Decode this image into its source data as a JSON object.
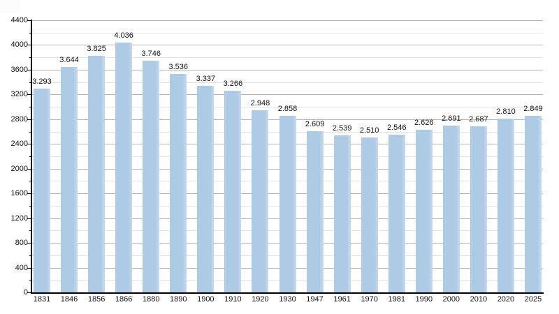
{
  "chart_data": {
    "type": "bar",
    "title": "",
    "xlabel": "",
    "ylabel": "",
    "categories": [
      "1831",
      "1846",
      "1856",
      "1866",
      "1880",
      "1890",
      "1900",
      "1910",
      "1920",
      "1930",
      "1947",
      "1961",
      "1970",
      "1981",
      "1990",
      "2000",
      "2010",
      "2020",
      "2025"
    ],
    "values": [
      3293,
      3644,
      3825,
      4036,
      3746,
      3536,
      3337,
      3266,
      2948,
      2858,
      2609,
      2539,
      2510,
      2546,
      2626,
      2691,
      2687,
      2810,
      2849
    ],
    "value_labels": [
      "3.293",
      "3.644",
      "3.825",
      "4.036",
      "3.746",
      "3.536",
      "3.337",
      "3.266",
      "2.948",
      "2.858",
      "2.609",
      "2.539",
      "2.510",
      "2.546",
      "2.626",
      "2.691",
      "2.687",
      "2.810",
      "2.849"
    ],
    "ylim": [
      0,
      4400
    ],
    "ytick_labels": [
      "0",
      "400",
      "800",
      "1200",
      "1600",
      "2000",
      "2400",
      "2800",
      "3200",
      "3600",
      "4000",
      "4400"
    ],
    "ytick_major_step": 400,
    "ytick_minor_step": 200,
    "grid": "horizontal-major-and-minor",
    "legend": "none",
    "colors": {
      "bar_fill": "#aecbe6",
      "grid_major": "#b3b3b3",
      "grid_minor": "#e2e2e2",
      "axis_line": "#000000",
      "label_text": "#111111",
      "background": "#ffffff"
    }
  }
}
